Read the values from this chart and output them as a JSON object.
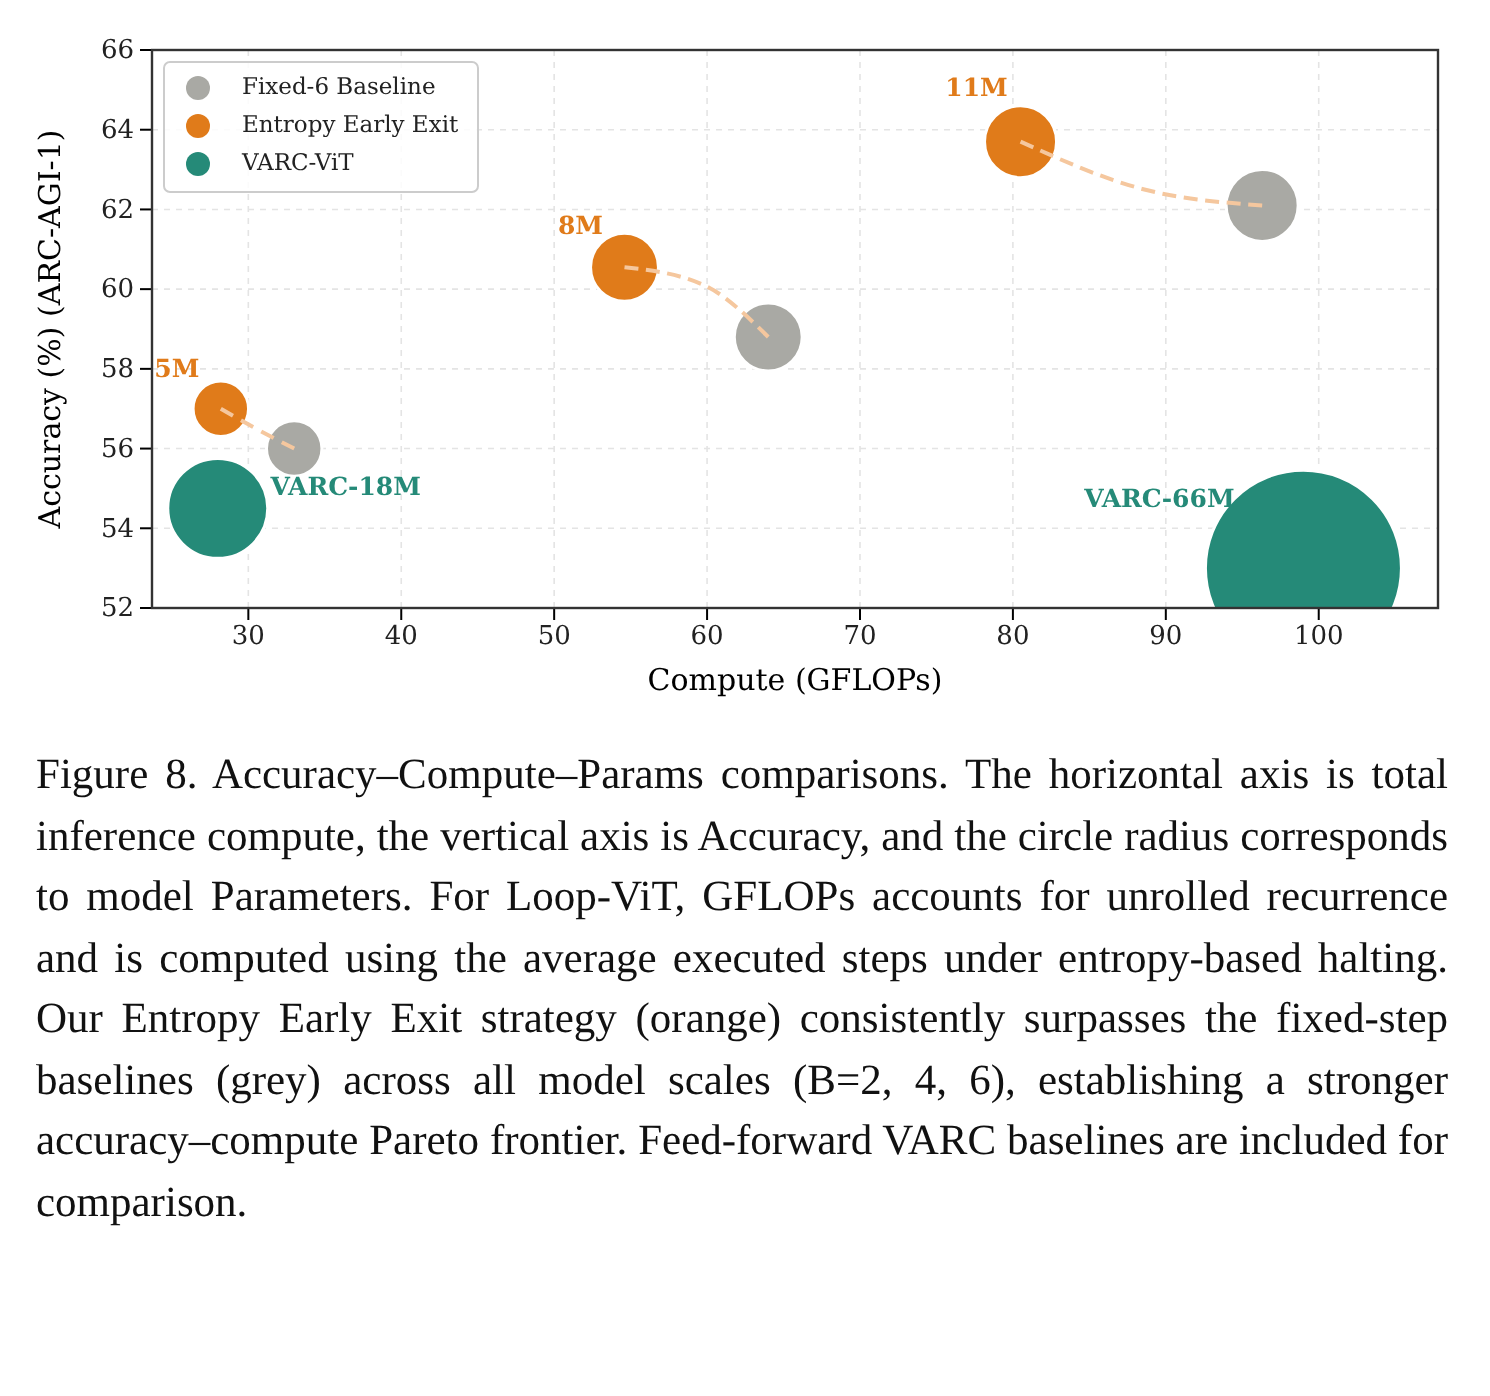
{
  "chart_data": {
    "type": "bubble",
    "xlabel": "Compute (GFLOPs)",
    "ylabel": "Accuracy (%) (ARC-AGI-1)",
    "xlim": [
      23.7,
      107.8
    ],
    "ylim": [
      52,
      66
    ],
    "xticks": [
      30,
      40,
      50,
      60,
      70,
      80,
      90,
      100
    ],
    "yticks": [
      52,
      54,
      56,
      58,
      60,
      62,
      64,
      66
    ],
    "grid": true,
    "legend": "top left",
    "marker": "circle",
    "series": [
      {
        "name": "Fixed-6 Baseline",
        "color": "#a9a9a4",
        "x": [
          33,
          64,
          96.3
        ],
        "values": [
          56.0,
          58.8,
          62.1
        ],
        "sizes": [
          0.08,
          0.12,
          0.135
        ]
      },
      {
        "name": "Entropy Early Exit",
        "color": "#e07b1a",
        "x": [
          28.2,
          54.6,
          80.5
        ],
        "values": [
          57.0,
          60.55,
          63.7
        ],
        "sizes": [
          0.08,
          0.12,
          0.135
        ]
      },
      {
        "name": "VARC-ViT",
        "color": "#258a78",
        "x": [
          28,
          99
        ],
        "values": [
          54.5,
          53.0
        ],
        "sizes": [
          0.26,
          1
        ]
      },
      {
        "type": "line",
        "color": "#f5c79e",
        "line_style": "dashed",
        "marker": "none",
        "x": [
          28.2,
          30.5,
          33
        ],
        "values": [
          57.0,
          56.5,
          56.0
        ]
      },
      {
        "type": "line",
        "color": "#f5c79e",
        "line_style": "dashed",
        "marker": "none",
        "x": [
          54.6,
          59.8,
          64
        ],
        "values": [
          60.55,
          60.1,
          58.8
        ]
      },
      {
        "type": "line",
        "color": "#f5c79e",
        "line_style": "dashed",
        "marker": "none",
        "x": [
          80.5,
          88.6,
          96.3
        ],
        "values": [
          63.7,
          62.5,
          62.1
        ]
      }
    ],
    "annotations": [
      {
        "text": "5M",
        "x": 28.2,
        "y": 57.0
      },
      {
        "text": "8M",
        "x": 54.6,
        "y": 60.55
      },
      {
        "text": "11M",
        "x": 80.5,
        "y": 63.7
      },
      {
        "text": "VARC-18M",
        "x": 28,
        "y": 54.5
      },
      "VARC-66M",
      "Figure 8. Accuracy–Compute–Params comparisons. The horizontal axis is total inference compute, the vertical axis is Accuracy, and the circle radius corresponds to model Parameters. For Loop-ViT, GFLOPs accounts for unrolled recurrence and is computed using the average executed steps under entropy-based halting. Our Entropy Early Exit strategy (orange) consistently surpasses the fixed-step baselines (grey) across all model scales (B=2, 4, 6), establishing a stronger accuracy–compute Pareto frontier. Feed-forward VARC baselines are included for comparison."
    ]
  }
}
